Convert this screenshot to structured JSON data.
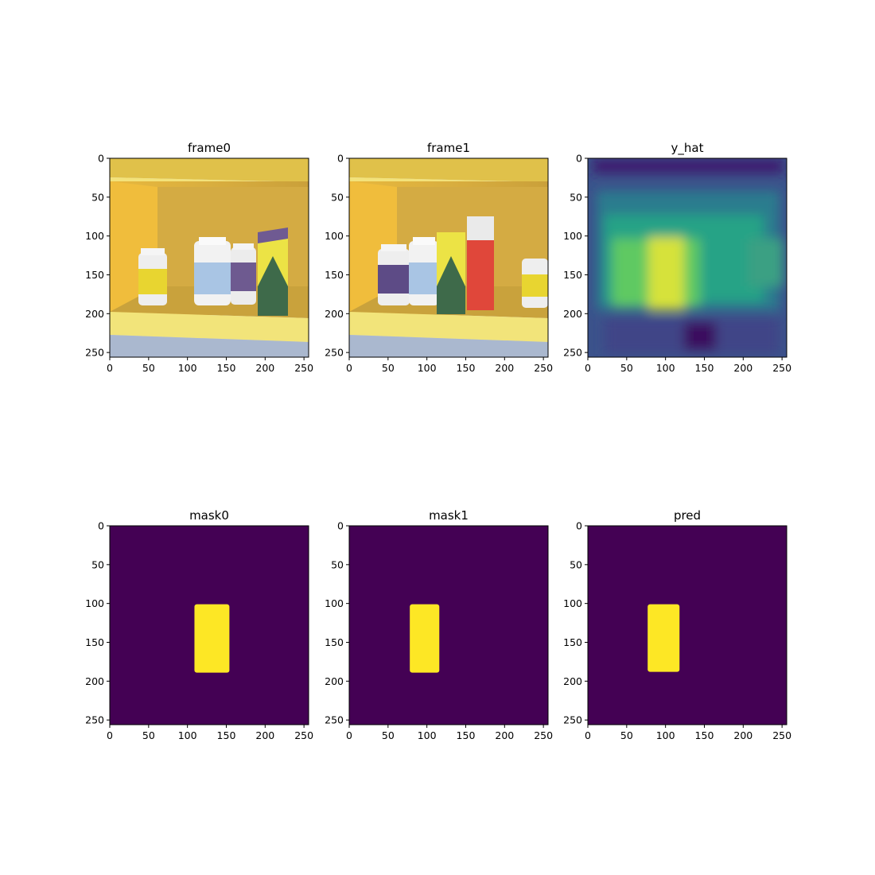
{
  "figure": {
    "background": "#ffffff"
  },
  "chart_data": [
    {
      "type": "image",
      "title": "frame0",
      "content": "photo",
      "xticks": [
        0,
        50,
        100,
        150,
        200,
        250
      ],
      "yticks": [
        0,
        50,
        100,
        150,
        200,
        250
      ],
      "xlim": [
        0,
        256
      ],
      "ylim": [
        256,
        0
      ]
    },
    {
      "type": "image",
      "title": "frame1",
      "content": "photo",
      "xticks": [
        0,
        50,
        100,
        150,
        200,
        250
      ],
      "yticks": [
        0,
        50,
        100,
        150,
        200,
        250
      ],
      "xlim": [
        0,
        256
      ],
      "ylim": [
        256,
        0
      ]
    },
    {
      "type": "heatmap",
      "title": "y_hat",
      "colormap": "viridis",
      "xticks": [
        0,
        50,
        100,
        150,
        200,
        250
      ],
      "yticks": [
        0,
        50,
        100,
        150,
        200,
        250
      ],
      "xlim": [
        0,
        256
      ],
      "ylim": [
        256,
        0
      ]
    },
    {
      "type": "heatmap",
      "title": "mask0",
      "colormap": "viridis",
      "xticks": [
        0,
        50,
        100,
        150,
        200,
        250
      ],
      "yticks": [
        0,
        50,
        100,
        150,
        200,
        250
      ],
      "xlim": [
        0,
        256
      ],
      "ylim": [
        256,
        0
      ],
      "foreground_region": {
        "x": [
          109,
          154
        ],
        "y": [
          101,
          189
        ]
      }
    },
    {
      "type": "heatmap",
      "title": "mask1",
      "colormap": "viridis",
      "xticks": [
        0,
        50,
        100,
        150,
        200,
        250
      ],
      "yticks": [
        0,
        50,
        100,
        150,
        200,
        250
      ],
      "xlim": [
        0,
        256
      ],
      "ylim": [
        256,
        0
      ],
      "foreground_region": {
        "x": [
          78,
          116
        ],
        "y": [
          101,
          189
        ]
      }
    },
    {
      "type": "heatmap",
      "title": "pred",
      "colormap": "viridis",
      "xticks": [
        0,
        50,
        100,
        150,
        200,
        250
      ],
      "yticks": [
        0,
        50,
        100,
        150,
        200,
        250
      ],
      "xlim": [
        0,
        256
      ],
      "ylim": [
        256,
        0
      ],
      "foreground_region": {
        "x": [
          77,
          118
        ],
        "y": [
          101,
          188
        ]
      }
    }
  ],
  "colors": {
    "viridis_low": "#440154",
    "viridis_high": "#fde725",
    "viridis_mid": "#21918c",
    "viridis_green": "#5ec962",
    "shelf_yellow": "#f2d64a",
    "wall": "#d8ad3c",
    "floor": "#a9b8cf"
  }
}
